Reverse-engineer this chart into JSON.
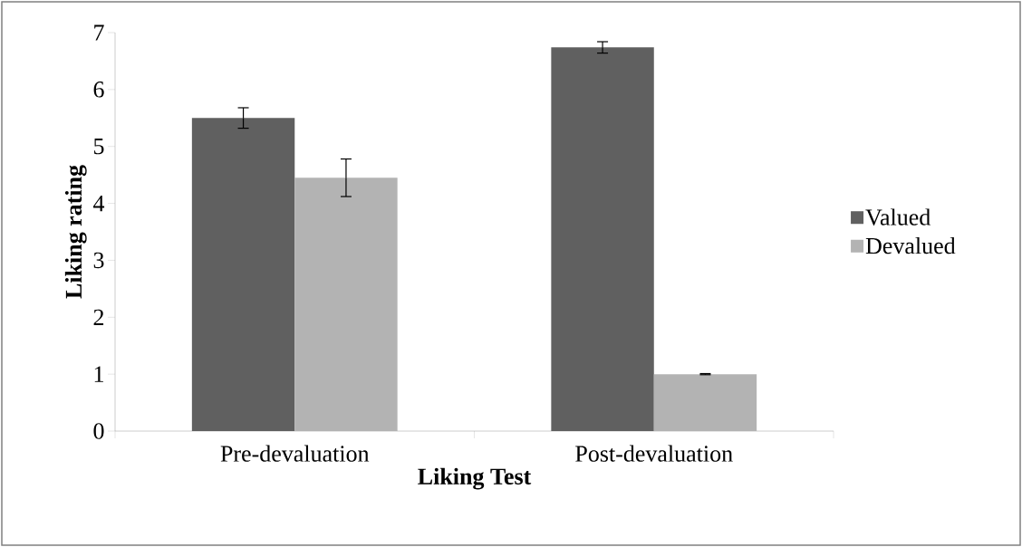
{
  "chart_data": {
    "type": "bar",
    "xlabel": "Liking Test",
    "ylabel": "Liking rating",
    "categories": [
      "Pre-devaluation",
      "Post-devaluation"
    ],
    "series": [
      {
        "name": "Valued",
        "color": "#606060",
        "values": [
          5.5,
          6.74
        ],
        "errors": [
          0.18,
          0.1
        ]
      },
      {
        "name": "Devalued",
        "color": "#b3b3b3",
        "values": [
          4.45,
          1.0
        ],
        "errors": [
          0.33,
          0.01
        ]
      }
    ],
    "ylim": [
      0,
      7
    ],
    "yticks": [
      0,
      1,
      2,
      3,
      4,
      5,
      6,
      7
    ],
    "legend": "right"
  }
}
